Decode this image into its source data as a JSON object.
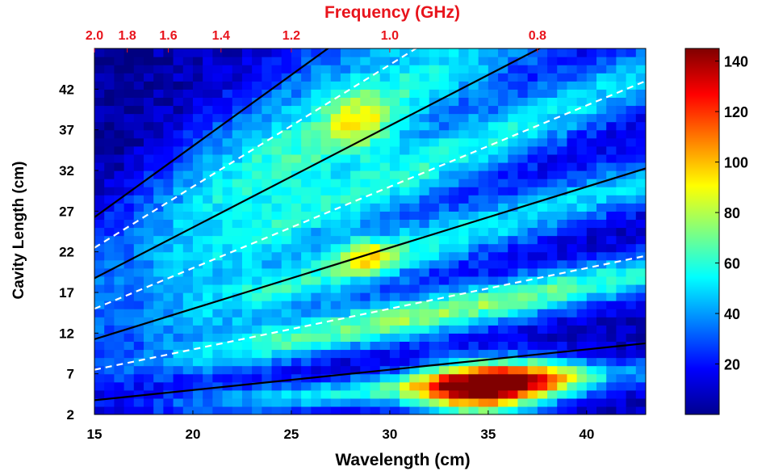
{
  "chart_data": {
    "type": "heatmap",
    "xlabel": "Wavelength (cm)",
    "ylabel": "Cavity Length (cm)",
    "top_axis_label": "Frequency (GHz)",
    "x_range": [
      15,
      43
    ],
    "y_range": [
      2,
      47
    ],
    "x_ticks": [
      "15",
      "20",
      "25",
      "30",
      "35",
      "40"
    ],
    "y_ticks": [
      "2",
      "7",
      "12",
      "17",
      "22",
      "27",
      "32",
      "37",
      "42"
    ],
    "top_ticks": [
      "2.0",
      "1.8",
      "1.6",
      "1.4",
      "1.2",
      "1.0",
      "0.8"
    ],
    "colorbar": {
      "range": [
        0,
        145
      ],
      "ticks": [
        "20",
        "40",
        "60",
        "80",
        "100",
        "120",
        "140"
      ],
      "colormap": "jet"
    },
    "solid_lines_slope": [
      0.25,
      0.75,
      1.25,
      1.75
    ],
    "dashed_lines_slope": [
      0.5,
      1.0,
      1.5
    ],
    "line_colors": {
      "solid": "#000000",
      "dashed": "#ffffff"
    },
    "hotspots": [
      {
        "x": 34.5,
        "y": 5,
        "value": 140
      },
      {
        "x": 28.8,
        "y": 21.5,
        "value": 80
      },
      {
        "x": 28.5,
        "y": 38,
        "value": 70
      }
    ],
    "grid": false
  }
}
